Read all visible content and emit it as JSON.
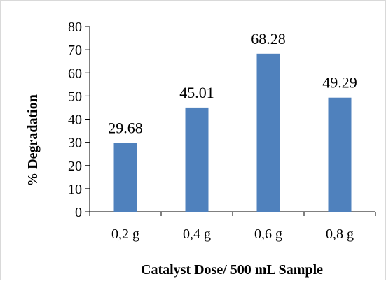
{
  "chart_data": {
    "type": "bar",
    "title": "",
    "categories": [
      "0,2 g",
      "0,4 g",
      "0,6 g",
      "0,8 g"
    ],
    "values": [
      29.68,
      45.01,
      68.28,
      49.29
    ],
    "data_labels": [
      "29.68",
      "45.01",
      "68.28",
      "49.29"
    ],
    "xlabel": "Catalyst Dose/ 500 mL Sample",
    "ylabel": "% Degradation",
    "ylim": [
      0,
      80
    ],
    "yticks": [
      0,
      10,
      20,
      30,
      40,
      50,
      60,
      70,
      80
    ],
    "grid": false,
    "legend": "none",
    "bar_color": "#4F81BD",
    "axis_color": "#000000"
  }
}
